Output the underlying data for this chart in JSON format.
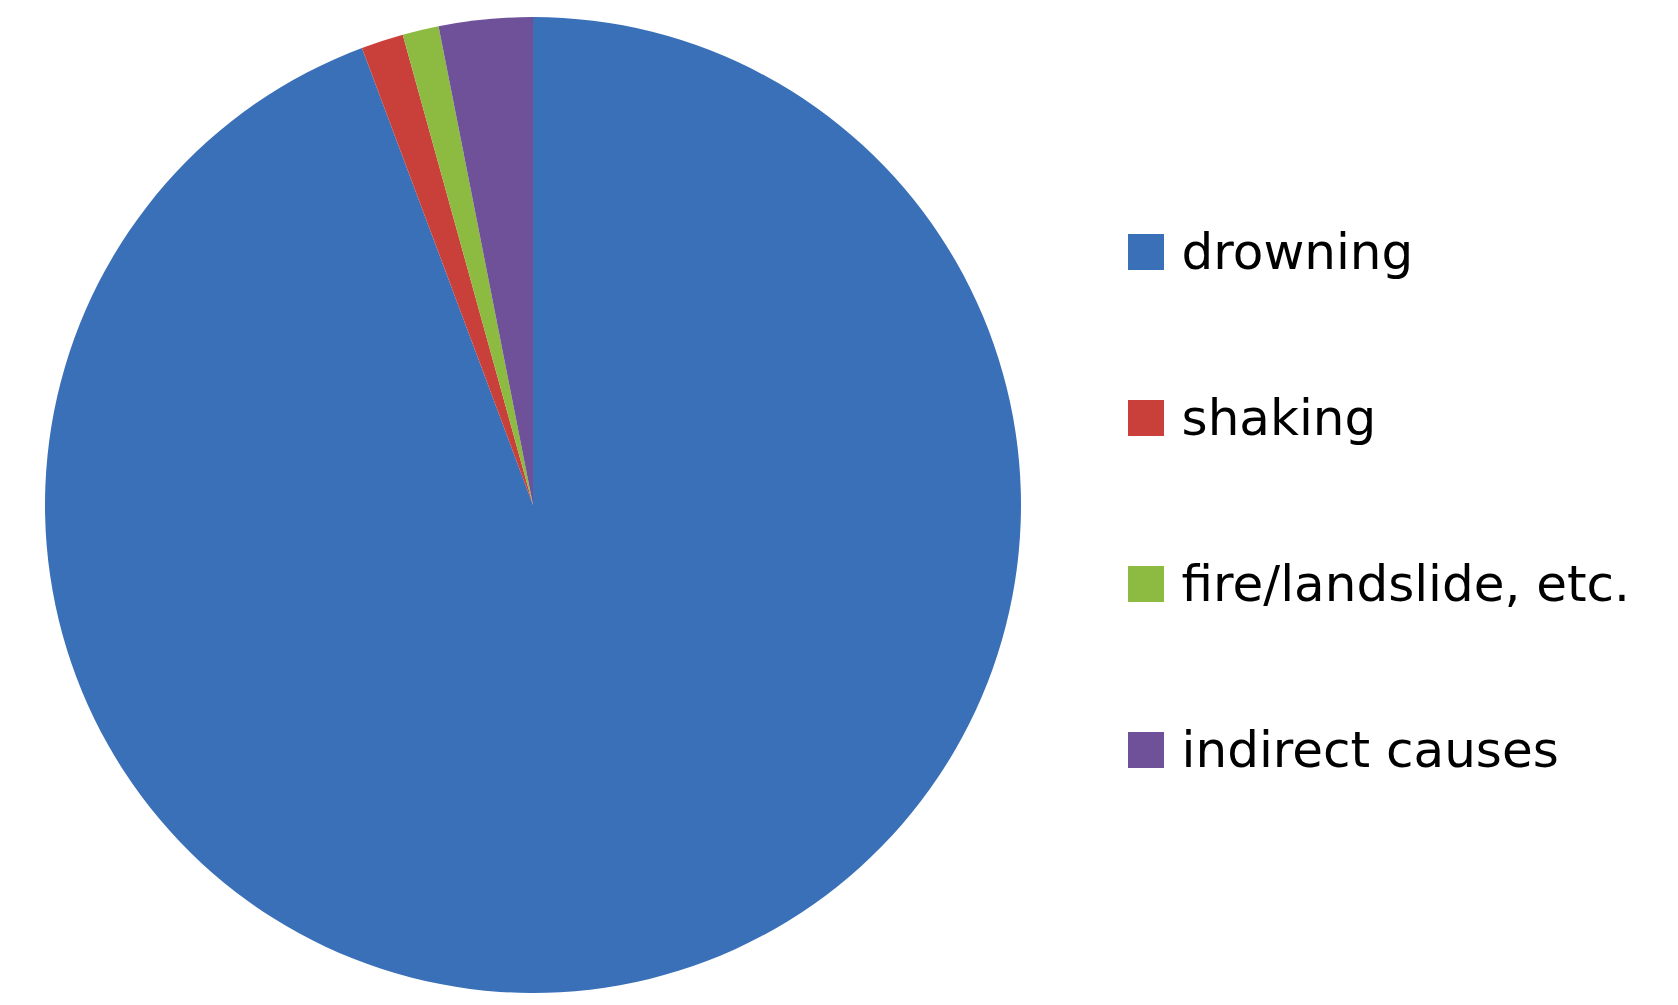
{
  "chart_data": {
    "type": "pie",
    "categories": [
      "drowning",
      "shaking",
      "fire/landslide, etc.",
      "indirect causes"
    ],
    "values": [
      94.3,
      1.4,
      1.2,
      3.1
    ],
    "colors": [
      "#3a70b8",
      "#c9403b",
      "#8dba41",
      "#6e5199"
    ],
    "legend": "right"
  }
}
